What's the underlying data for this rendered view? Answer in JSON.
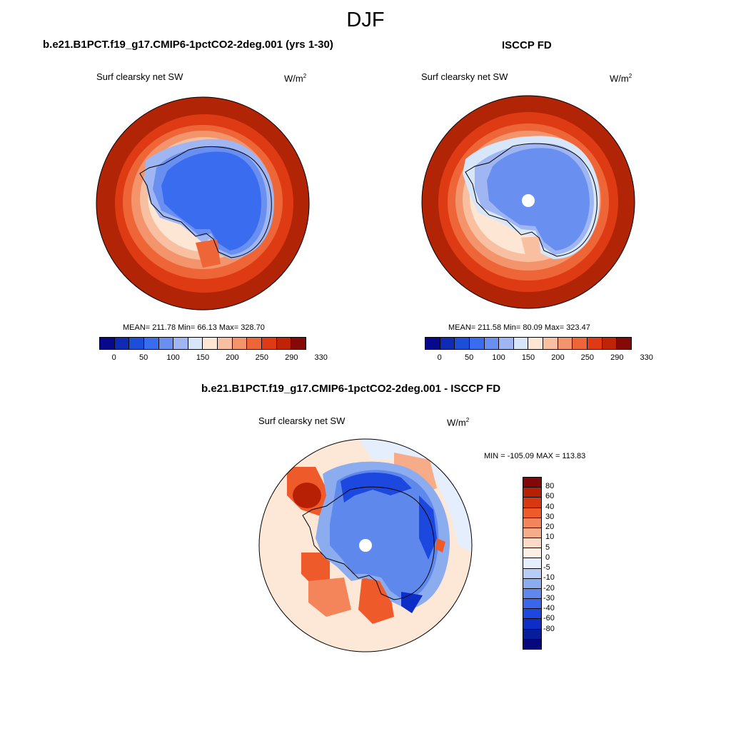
{
  "figure": {
    "title": "DJF"
  },
  "panels": {
    "left": {
      "title": "b.e21.B1PCT.f19_g17.CMIP6-1pctCO2-2deg.001 (yrs 1-30)",
      "variable": "Surf clearsky net SW",
      "units_base": "W/m",
      "units_sup": "2",
      "stats": "MEAN= 211.78  Min=  66.13  Max= 328.70"
    },
    "right": {
      "title": "ISCCP FD",
      "variable": "Surf clearsky net SW",
      "units_base": "W/m",
      "units_sup": "2",
      "stats": "MEAN= 211.58  Min=  80.09  Max= 323.47"
    },
    "diff": {
      "title": "b.e21.B1PCT.f19_g17.CMIP6-1pctCO2-2deg.001 - ISCCP FD",
      "variable": "Surf clearsky net SW",
      "units_base": "W/m",
      "units_sup": "2",
      "stats": "MIN = -105.09 MAX = 113.83"
    }
  },
  "colorbar_main": {
    "colors": [
      "#08088c",
      "#0f2ab4",
      "#1c4fd8",
      "#3a6cf0",
      "#6990f0",
      "#9fb6f2",
      "#d8e6fa",
      "#fde6d4",
      "#f8c0a0",
      "#f4946c",
      "#ee6638",
      "#e03a14",
      "#c02406",
      "#850a06"
    ],
    "tick_labels": [
      "0",
      "50",
      "100",
      "150",
      "200",
      "250",
      "290",
      "330"
    ]
  },
  "colorbar_diff": {
    "colors": [
      "#840606",
      "#b82006",
      "#d83810",
      "#ee5a2a",
      "#f4845a",
      "#f6ac88",
      "#fcdac6",
      "#fcefe4",
      "#e4eefc",
      "#b8cdf5",
      "#8cacf0",
      "#5f88ec",
      "#3a66ec",
      "#1c48e0",
      "#0c2ec6",
      "#071e9a",
      "#06087c"
    ],
    "tick_labels": [
      "80",
      "60",
      "40",
      "30",
      "20",
      "10",
      "5",
      "0",
      "-5",
      "-10",
      "-20",
      "-30",
      "-40",
      "-60",
      "-80"
    ]
  }
}
